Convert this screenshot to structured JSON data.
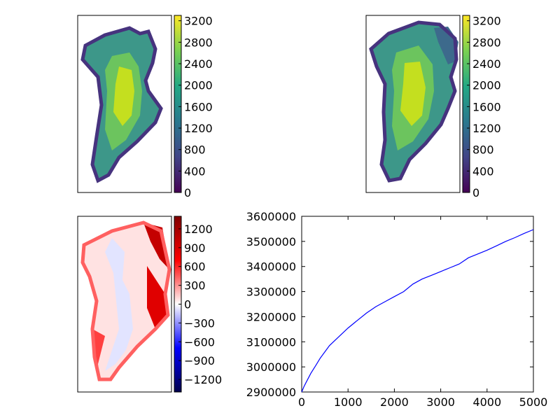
{
  "chart_data": [
    {
      "type": "heatmap",
      "colormap": "viridis",
      "colorbar": {
        "ticks": [
          "0",
          "400",
          "800",
          "1200",
          "1600",
          "2000",
          "2400",
          "2800",
          "3200"
        ],
        "range": [
          0,
          3300
        ]
      }
    },
    {
      "type": "heatmap",
      "colormap": "viridis",
      "colorbar": {
        "ticks": [
          "0",
          "400",
          "800",
          "1200",
          "1600",
          "2000",
          "2400",
          "2800",
          "3200"
        ],
        "range": [
          0,
          3300
        ]
      }
    },
    {
      "type": "heatmap",
      "colormap": "seismic",
      "colorbar": {
        "ticks": [
          "−1200",
          "−900",
          "−600",
          "−300",
          "0",
          "300",
          "600",
          "900",
          "1200"
        ],
        "range": [
          -1400,
          1400
        ]
      }
    },
    {
      "type": "line",
      "xlim": [
        0,
        5000
      ],
      "ylim": [
        2900000,
        3600000
      ],
      "xticks": [
        "0",
        "1000",
        "2000",
        "3000",
        "4000",
        "5000"
      ],
      "yticks": [
        "2900000",
        "3000000",
        "3100000",
        "3200000",
        "3300000",
        "3400000",
        "3500000",
        "3600000"
      ],
      "color": "#0000ff",
      "series": [
        {
          "x": [
            0,
            50,
            100,
            200,
            300,
            400,
            500,
            600,
            800,
            1000,
            1200,
            1400,
            1600,
            1800,
            2000,
            2200,
            2400,
            2600,
            2800,
            3000,
            3200,
            3400,
            3600,
            3800,
            4000,
            4200,
            4400,
            4600,
            4800,
            5000
          ],
          "values": [
            2900000,
            2922000,
            2940000,
            2975000,
            3005000,
            3035000,
            3060000,
            3085000,
            3120000,
            3155000,
            3185000,
            3215000,
            3240000,
            3260000,
            3280000,
            3300000,
            3330000,
            3350000,
            3365000,
            3380000,
            3395000,
            3410000,
            3435000,
            3450000,
            3465000,
            3482000,
            3500000,
            3515000,
            3532000,
            3547000
          ]
        }
      ]
    }
  ]
}
